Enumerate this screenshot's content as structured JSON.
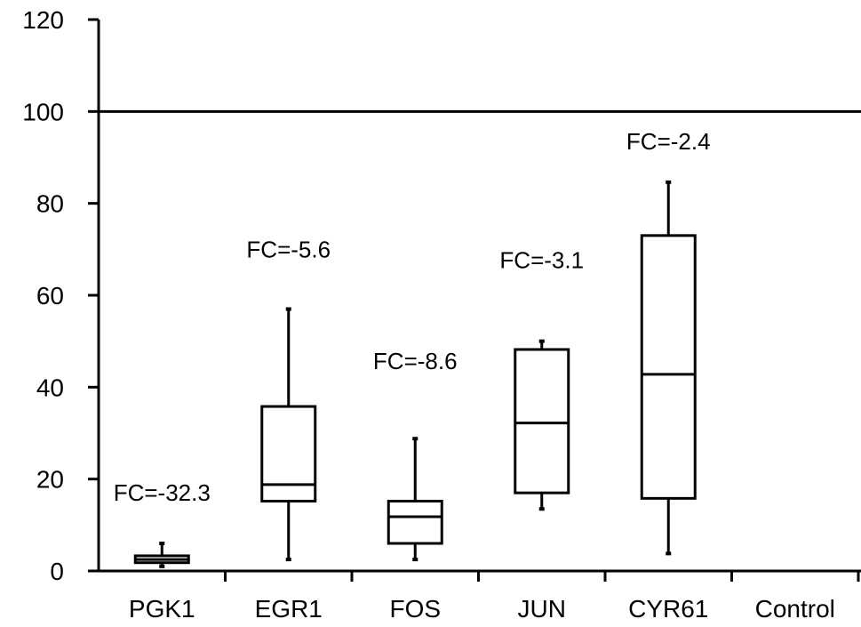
{
  "chart_data": {
    "type": "box",
    "title": "",
    "xlabel": "",
    "ylabel": "",
    "ylim": [
      0,
      120
    ],
    "yticks": [
      0,
      20,
      40,
      60,
      80,
      100,
      120
    ],
    "reference_line": 100,
    "categories": [
      "PGK1",
      "EGR1",
      "FOS",
      "JUN",
      "CYR61",
      "Control"
    ],
    "boxes": [
      {
        "category": "PGK1",
        "min": 1,
        "q1": 1.8,
        "median": 2.5,
        "q3": 3.3,
        "max": 6,
        "fc_label": "FC=-32.3"
      },
      {
        "category": "EGR1",
        "min": 2.5,
        "q1": 15.2,
        "median": 18.8,
        "q3": 35.8,
        "max": 57,
        "fc_label": "FC=-5.6"
      },
      {
        "category": "FOS",
        "min": 2.5,
        "q1": 6,
        "median": 11.8,
        "q3": 15.2,
        "max": 28.8,
        "fc_label": "FC=-8.6"
      },
      {
        "category": "JUN",
        "min": 13.5,
        "q1": 17,
        "median": 32.2,
        "q3": 48.2,
        "max": 50,
        "fc_label": "FC=-3.1"
      },
      {
        "category": "CYR61",
        "min": 3.8,
        "q1": 15.8,
        "median": 42.8,
        "q3": 73,
        "max": 84.6,
        "fc_label": "FC=-2.4"
      }
    ],
    "colors": {
      "line": "#000000",
      "box_fill": "#ffffff"
    }
  }
}
